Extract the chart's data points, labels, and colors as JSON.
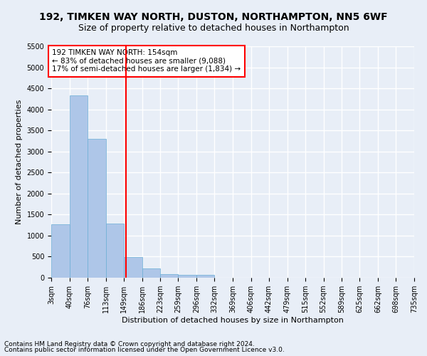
{
  "title": "192, TIMKEN WAY NORTH, DUSTON, NORTHAMPTON, NN5 6WF",
  "subtitle": "Size of property relative to detached houses in Northampton",
  "xlabel": "Distribution of detached houses by size in Northampton",
  "ylabel": "Number of detached properties",
  "footnote1": "Contains HM Land Registry data © Crown copyright and database right 2024.",
  "footnote2": "Contains public sector information licensed under the Open Government Licence v3.0.",
  "bin_edges": [
    3,
    40,
    76,
    113,
    149,
    186,
    223,
    259,
    296,
    332,
    369,
    406,
    442,
    479,
    515,
    552,
    589,
    625,
    662,
    698,
    735
  ],
  "bin_labels": [
    "3sqm",
    "40sqm",
    "76sqm",
    "113sqm",
    "149sqm",
    "186sqm",
    "223sqm",
    "259sqm",
    "296sqm",
    "332sqm",
    "369sqm",
    "406sqm",
    "442sqm",
    "479sqm",
    "515sqm",
    "552sqm",
    "589sqm",
    "625sqm",
    "662sqm",
    "698sqm",
    "735sqm"
  ],
  "counts": [
    1270,
    4330,
    3300,
    1280,
    490,
    215,
    90,
    60,
    60,
    0,
    0,
    0,
    0,
    0,
    0,
    0,
    0,
    0,
    0,
    0
  ],
  "bar_color": "#aec6e8",
  "bar_edge_color": "#6baed6",
  "vline_x": 154,
  "vline_color": "red",
  "ylim": [
    0,
    5500
  ],
  "yticks": [
    0,
    500,
    1000,
    1500,
    2000,
    2500,
    3000,
    3500,
    4000,
    4500,
    5000,
    5500
  ],
  "annotation_text": "192 TIMKEN WAY NORTH: 154sqm\n← 83% of detached houses are smaller (9,088)\n17% of semi-detached houses are larger (1,834) →",
  "annotation_box_color": "white",
  "annotation_box_edge_color": "red",
  "background_color": "#e8eef7",
  "plot_bg_color": "#e8eef7",
  "grid_color": "white",
  "title_fontsize": 10,
  "subtitle_fontsize": 9,
  "axis_label_fontsize": 8,
  "tick_fontsize": 7,
  "annotation_fontsize": 7.5,
  "footnote_fontsize": 6.5
}
